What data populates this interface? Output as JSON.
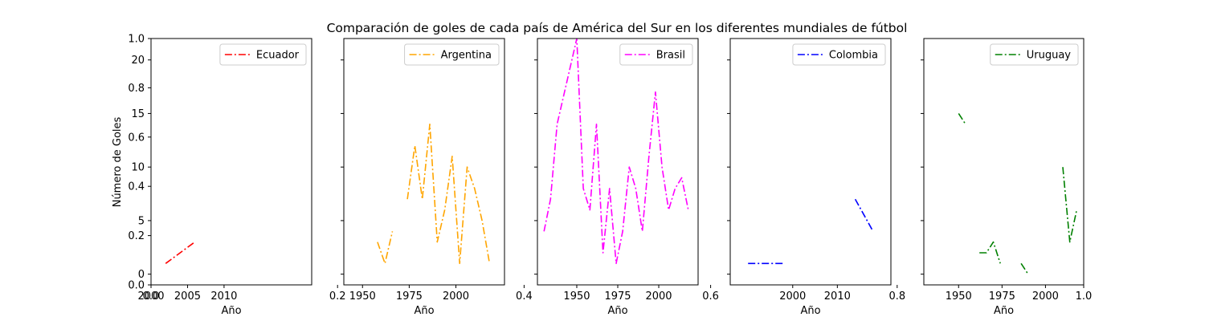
{
  "chart_data": {
    "type": "line",
    "title": "Comparación de goles de cada país de América del Sur en los diferentes mundiales de fútbol",
    "ylabel": "Número de Goles",
    "background_axis": {
      "x_ticks": [
        "0.0",
        "0.2",
        "0.4",
        "0.6",
        "0.8",
        "1.0"
      ],
      "y_ticks": [
        "0.0",
        "0.2",
        "0.4",
        "0.6",
        "0.8",
        "1.0"
      ]
    },
    "goal_ticks": [
      0,
      5,
      10,
      15,
      20
    ],
    "ylim": [
      -1,
      22
    ],
    "subplots": [
      {
        "name": "Ecuador",
        "color": "#ff0000",
        "xlabel": "Año",
        "xlim": [
          2000,
          2022
        ],
        "xticks": [
          2000,
          2005,
          2010
        ],
        "segments": [
          [
            [
              2002,
              1
            ],
            [
              2006,
              3
            ]
          ]
        ]
      },
      {
        "name": "Argentina",
        "color": "#ffa500",
        "xlabel": "Año",
        "xlim": [
          1940,
          2026
        ],
        "xticks": [
          1950,
          1975,
          2000
        ],
        "segments": [
          [
            [
              1958,
              3
            ],
            [
              1962,
              1
            ],
            [
              1966,
              4
            ]
          ],
          [
            [
              1974,
              7
            ],
            [
              1978,
              12
            ],
            [
              1982,
              7
            ],
            [
              1986,
              14
            ],
            [
              1990,
              3
            ],
            [
              1994,
              6
            ],
            [
              1998,
              11
            ],
            [
              2002,
              1
            ],
            [
              2006,
              10
            ],
            [
              2010,
              8
            ],
            [
              2014,
              5
            ],
            [
              2018,
              1
            ]
          ]
        ]
      },
      {
        "name": "Brasil",
        "color": "#ff00ff",
        "xlabel": "Año",
        "xlim": [
          1926,
          2024
        ],
        "xticks": [
          1950,
          1975,
          2000
        ],
        "segments": [
          [
            [
              1930,
              4
            ],
            [
              1934,
              7
            ],
            [
              1938,
              14
            ],
            [
              1950,
              22
            ],
            [
              1954,
              8
            ],
            [
              1958,
              6
            ],
            [
              1962,
              14
            ],
            [
              1966,
              2
            ],
            [
              1970,
              8
            ],
            [
              1974,
              1
            ],
            [
              1978,
              4
            ],
            [
              1982,
              10
            ],
            [
              1986,
              8
            ],
            [
              1990,
              4
            ],
            [
              1994,
              11
            ],
            [
              1998,
              17
            ],
            [
              2002,
              10
            ],
            [
              2006,
              6
            ],
            [
              2010,
              8
            ],
            [
              2014,
              9
            ],
            [
              2018,
              6
            ]
          ]
        ]
      },
      {
        "name": "Colombia",
        "color": "#0000ff",
        "xlabel": "Año",
        "xlim": [
          1986,
          2022
        ],
        "xticks": [
          2000,
          2010
        ],
        "segments": [
          [
            [
              1990,
              1
            ],
            [
              1998,
              1
            ]
          ],
          [
            [
              2014,
              7
            ],
            [
              2018,
              4
            ]
          ]
        ]
      },
      {
        "name": "Uruguay",
        "color": "#008000",
        "xlabel": "Año",
        "xlim": [
          1930,
          2022
        ],
        "xticks": [
          1950,
          1975,
          2000
        ],
        "segments": [
          [
            [
              1950,
              15
            ],
            [
              1954,
              14
            ]
          ],
          [
            [
              1962,
              2
            ],
            [
              1966,
              2
            ],
            [
              1970,
              3
            ],
            [
              1974,
              1
            ]
          ],
          [
            [
              1986,
              1
            ],
            [
              1990,
              0
            ]
          ],
          [
            [
              2010,
              10
            ],
            [
              2014,
              3
            ],
            [
              2018,
              6
            ]
          ]
        ]
      }
    ]
  }
}
